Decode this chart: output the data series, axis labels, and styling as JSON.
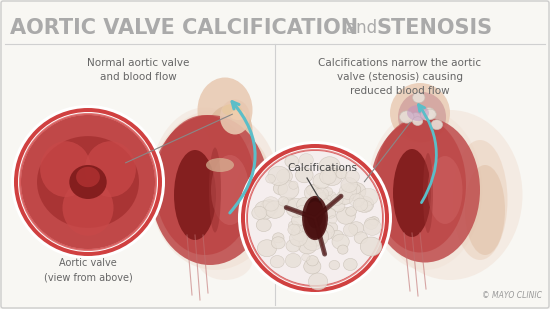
{
  "title_part1": "AORTIC VALVE CALCIFICATION",
  "title_part2": "and",
  "title_part3": "STENOSIS",
  "title_fontsize": 15,
  "title_color": "#aaaaaa",
  "bg_color": "#f8f7f3",
  "border_color": "#cccccc",
  "label_left_line1": "Normal aortic valve",
  "label_left_line2": "and blood flow",
  "label_right_line1": "Calcifications narrow the aortic",
  "label_right_line2": "valve (stenosis) causing",
  "label_right_line3": "reduced blood flow",
  "label_calcifications": "Calcifications",
  "label_aortic_valve_line1": "Aortic valve",
  "label_aortic_valve_line2": "(view from above)",
  "mayo_clinic": "© MAYO CLINIC",
  "heart_color": "#c05050",
  "heart_dark": "#7a1818",
  "heart_light": "#d87878",
  "aorta_color": "#e8c8b0",
  "aorta_color2": "#dbb898",
  "skin_color": "#f0ddd0",
  "calcification_white": "#e8e0d8",
  "calcification_grey": "#c8c0b5",
  "circle_rim_color": "#d04040",
  "circle_rim_inner": "#e07070",
  "circle_bg_left": "#c04848",
  "circle_bg_right": "#f5eeee",
  "arrow_color": "#5bbec8",
  "text_color": "#666666",
  "text_dark": "#444444",
  "line_color": "#444444",
  "purple_color": "#c090c0",
  "separator_color": "#d0d0d0"
}
